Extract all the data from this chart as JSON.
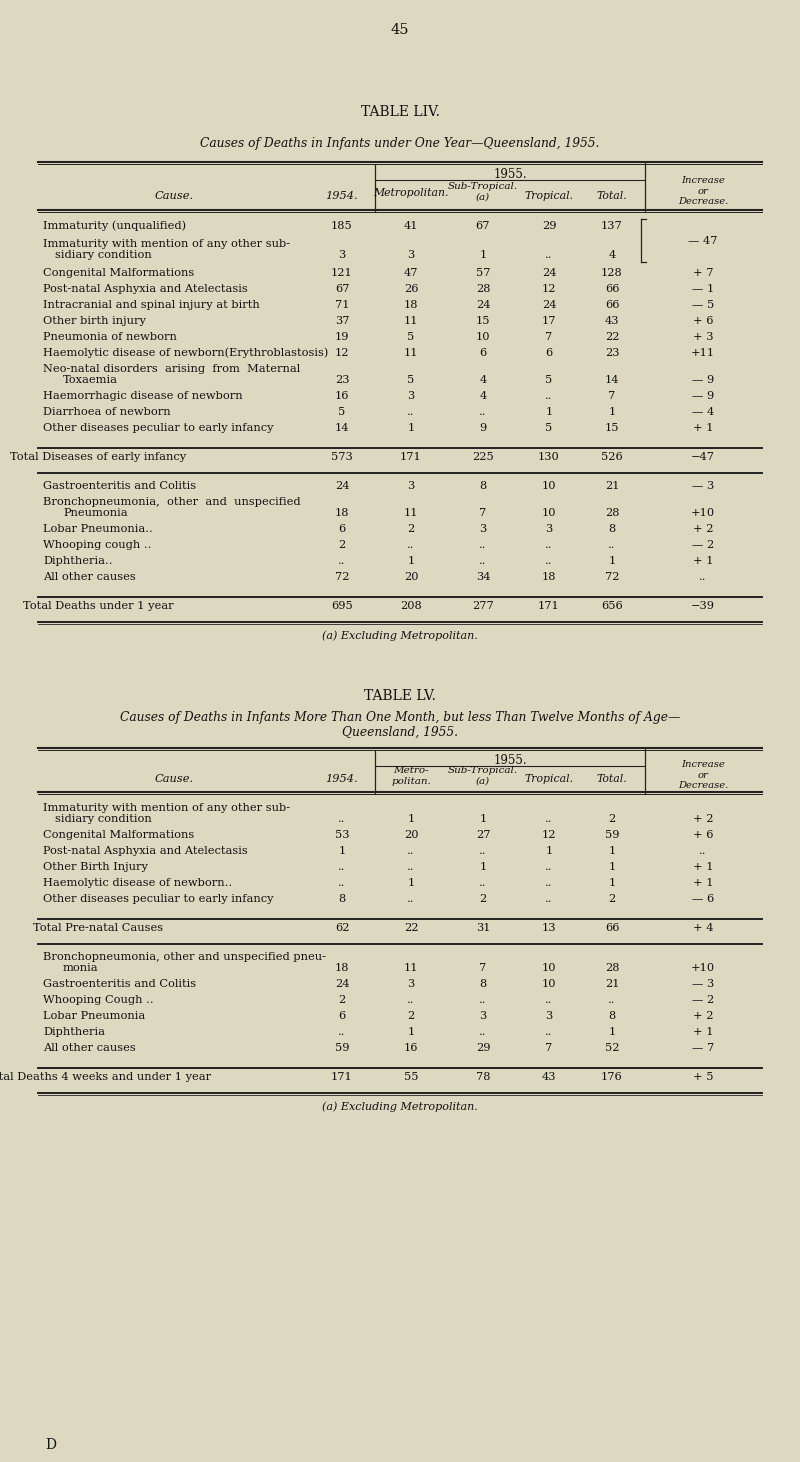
{
  "bg_color": "#ddd8c0",
  "page_number": "45",
  "t1_title": "TABLE LIV.",
  "t1_subtitle": "Causes of Deaths in Infants under One Year—Queensland, 1955.",
  "t1_footnote": "(a) Excluding Metropolitan.",
  "t2_title": "TABLE LV.",
  "t2_subtitle_1": "Causes of Deaths in Infants More Than One Month, but less Than Twelve Months of Age—",
  "t2_subtitle_2": "Queensland, 1955.",
  "t2_footnote": "(a) Excluding Metropolitan.",
  "bottom_letter": "D"
}
